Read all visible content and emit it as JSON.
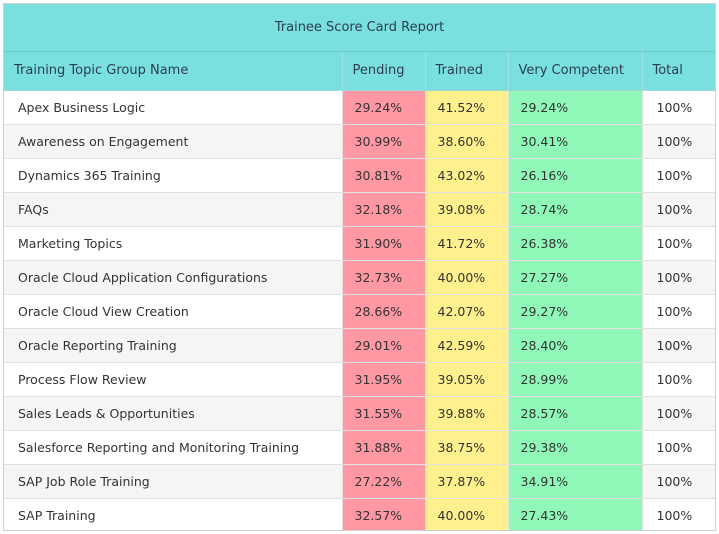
{
  "report": {
    "title": "Trainee Score Card Report",
    "columns": {
      "name": "Training Topic Group Name",
      "pending": "Pending",
      "trained": "Trained",
      "very_competent": "Very Competent",
      "total": "Total"
    },
    "colors": {
      "header_bg": "#7adfdf",
      "pending_bg": "#ff98a2",
      "trained_bg": "#fff08e",
      "very_competent_bg": "#8ff8b8"
    },
    "rows": [
      {
        "name": "Apex Business Logic",
        "pending": "29.24%",
        "trained": "41.52%",
        "very_competent": "29.24%",
        "total": "100%"
      },
      {
        "name": "Awareness on Engagement",
        "pending": "30.99%",
        "trained": "38.60%",
        "very_competent": "30.41%",
        "total": "100%"
      },
      {
        "name": "Dynamics 365 Training",
        "pending": "30.81%",
        "trained": "43.02%",
        "very_competent": "26.16%",
        "total": "100%"
      },
      {
        "name": "FAQs",
        "pending": "32.18%",
        "trained": "39.08%",
        "very_competent": "28.74%",
        "total": "100%"
      },
      {
        "name": "Marketing Topics",
        "pending": "31.90%",
        "trained": "41.72%",
        "very_competent": "26.38%",
        "total": "100%"
      },
      {
        "name": "Oracle Cloud Application Configurations",
        "pending": "32.73%",
        "trained": "40.00%",
        "very_competent": "27.27%",
        "total": "100%"
      },
      {
        "name": "Oracle Cloud View Creation",
        "pending": "28.66%",
        "trained": "42.07%",
        "very_competent": "29.27%",
        "total": "100%"
      },
      {
        "name": "Oracle Reporting Training",
        "pending": "29.01%",
        "trained": "42.59%",
        "very_competent": "28.40%",
        "total": "100%"
      },
      {
        "name": "Process Flow Review",
        "pending": "31.95%",
        "trained": "39.05%",
        "very_competent": "28.99%",
        "total": "100%"
      },
      {
        "name": "Sales Leads & Opportunities",
        "pending": "31.55%",
        "trained": "39.88%",
        "very_competent": "28.57%",
        "total": "100%"
      },
      {
        "name": "Salesforce Reporting and Monitoring Training",
        "pending": "31.88%",
        "trained": "38.75%",
        "very_competent": "29.38%",
        "total": "100%"
      },
      {
        "name": "SAP Job Role Training",
        "pending": "27.22%",
        "trained": "37.87%",
        "very_competent": "34.91%",
        "total": "100%"
      },
      {
        "name": "SAP Training",
        "pending": "32.57%",
        "trained": "40.00%",
        "very_competent": "27.43%",
        "total": "100%"
      }
    ]
  }
}
